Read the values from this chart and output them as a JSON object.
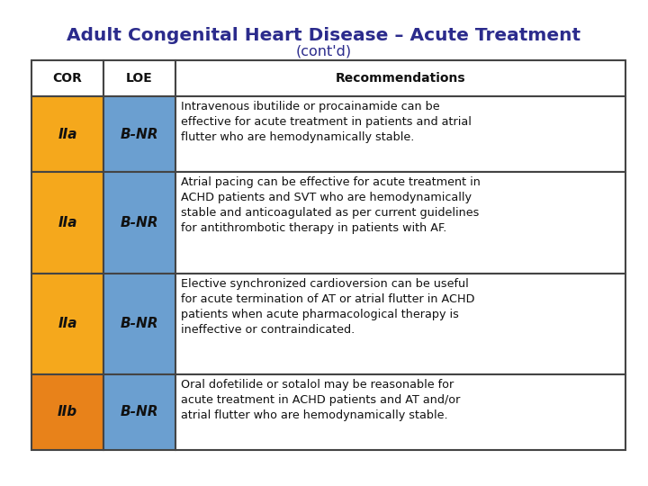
{
  "title": "Adult Congenital Heart Disease – Acute Treatment",
  "subtitle": "(cont'd)",
  "title_color": "#2B2B8C",
  "col_headers": [
    "COR",
    "LOE",
    "Recommendations"
  ],
  "rows": [
    {
      "cor": "IIa",
      "loe": "B-NR",
      "cor_color": "#F5A81C",
      "loe_color": "#6B9FD0",
      "text": "Intravenous ibutilide or procainamide can be\neffective for acute treatment in patients and atrial\nflutter who are hemodynamically stable."
    },
    {
      "cor": "IIa",
      "loe": "B-NR",
      "cor_color": "#F5A81C",
      "loe_color": "#6B9FD0",
      "text": "Atrial pacing can be effective for acute treatment in\nACHD patients and SVT who are hemodynamically\nstable and anticoagulated as per current guidelines\nfor antithrombotic therapy in patients with AF."
    },
    {
      "cor": "IIa",
      "loe": "B-NR",
      "cor_color": "#F5A81C",
      "loe_color": "#6B9FD0",
      "text": "Elective synchronized cardioversion can be useful\nfor acute termination of AT or atrial flutter in ACHD\npatients when acute pharmacological therapy is\nineffective or contraindicated."
    },
    {
      "cor": "IIb",
      "loe": "B-NR",
      "cor_color": "#E8821A",
      "loe_color": "#6B9FD0",
      "text": "Oral dofetilide or sotalol may be reasonable for\nacute treatment in ACHD patients and AT and/or\natrial flutter who are hemodynamically stable."
    }
  ],
  "border_color": "#444444",
  "text_color": "#111111",
  "bg_color": "#FFFFFF",
  "fig_width": 7.2,
  "fig_height": 5.4,
  "dpi": 100
}
